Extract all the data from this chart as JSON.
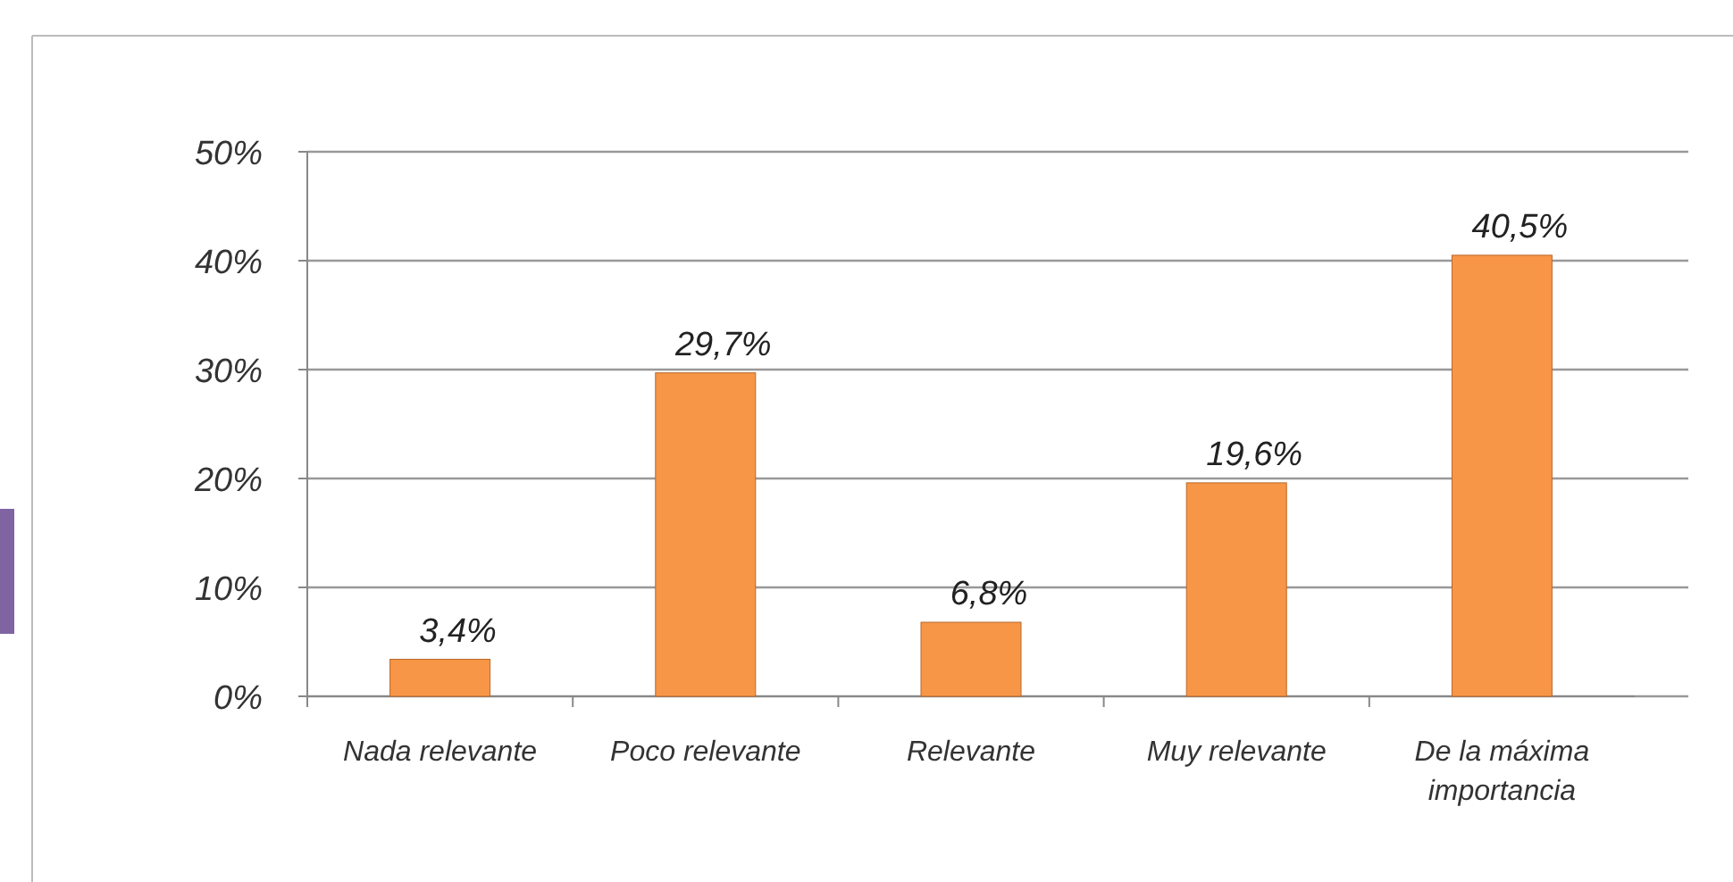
{
  "chart_data": {
    "type": "bar",
    "categories": [
      "Nada relevante",
      "Poco relevante",
      "Relevante",
      "Muy relevante",
      "De la máxima importancia"
    ],
    "values": [
      3.4,
      29.7,
      6.8,
      19.6,
      40.5
    ],
    "value_labels": [
      "3,4%",
      "29,7%",
      "6,8%",
      "19,6%",
      "40,5%"
    ],
    "color": "#f79646",
    "ylim": [
      0,
      50
    ],
    "yticks": [
      {
        "value": 0,
        "label": "0%"
      },
      {
        "value": 10,
        "label": "10%"
      },
      {
        "value": 20,
        "label": "20%"
      },
      {
        "value": 30,
        "label": "30%"
      },
      {
        "value": 40,
        "label": "40%"
      },
      {
        "value": 50,
        "label": "50%"
      }
    ],
    "grid": "y"
  }
}
